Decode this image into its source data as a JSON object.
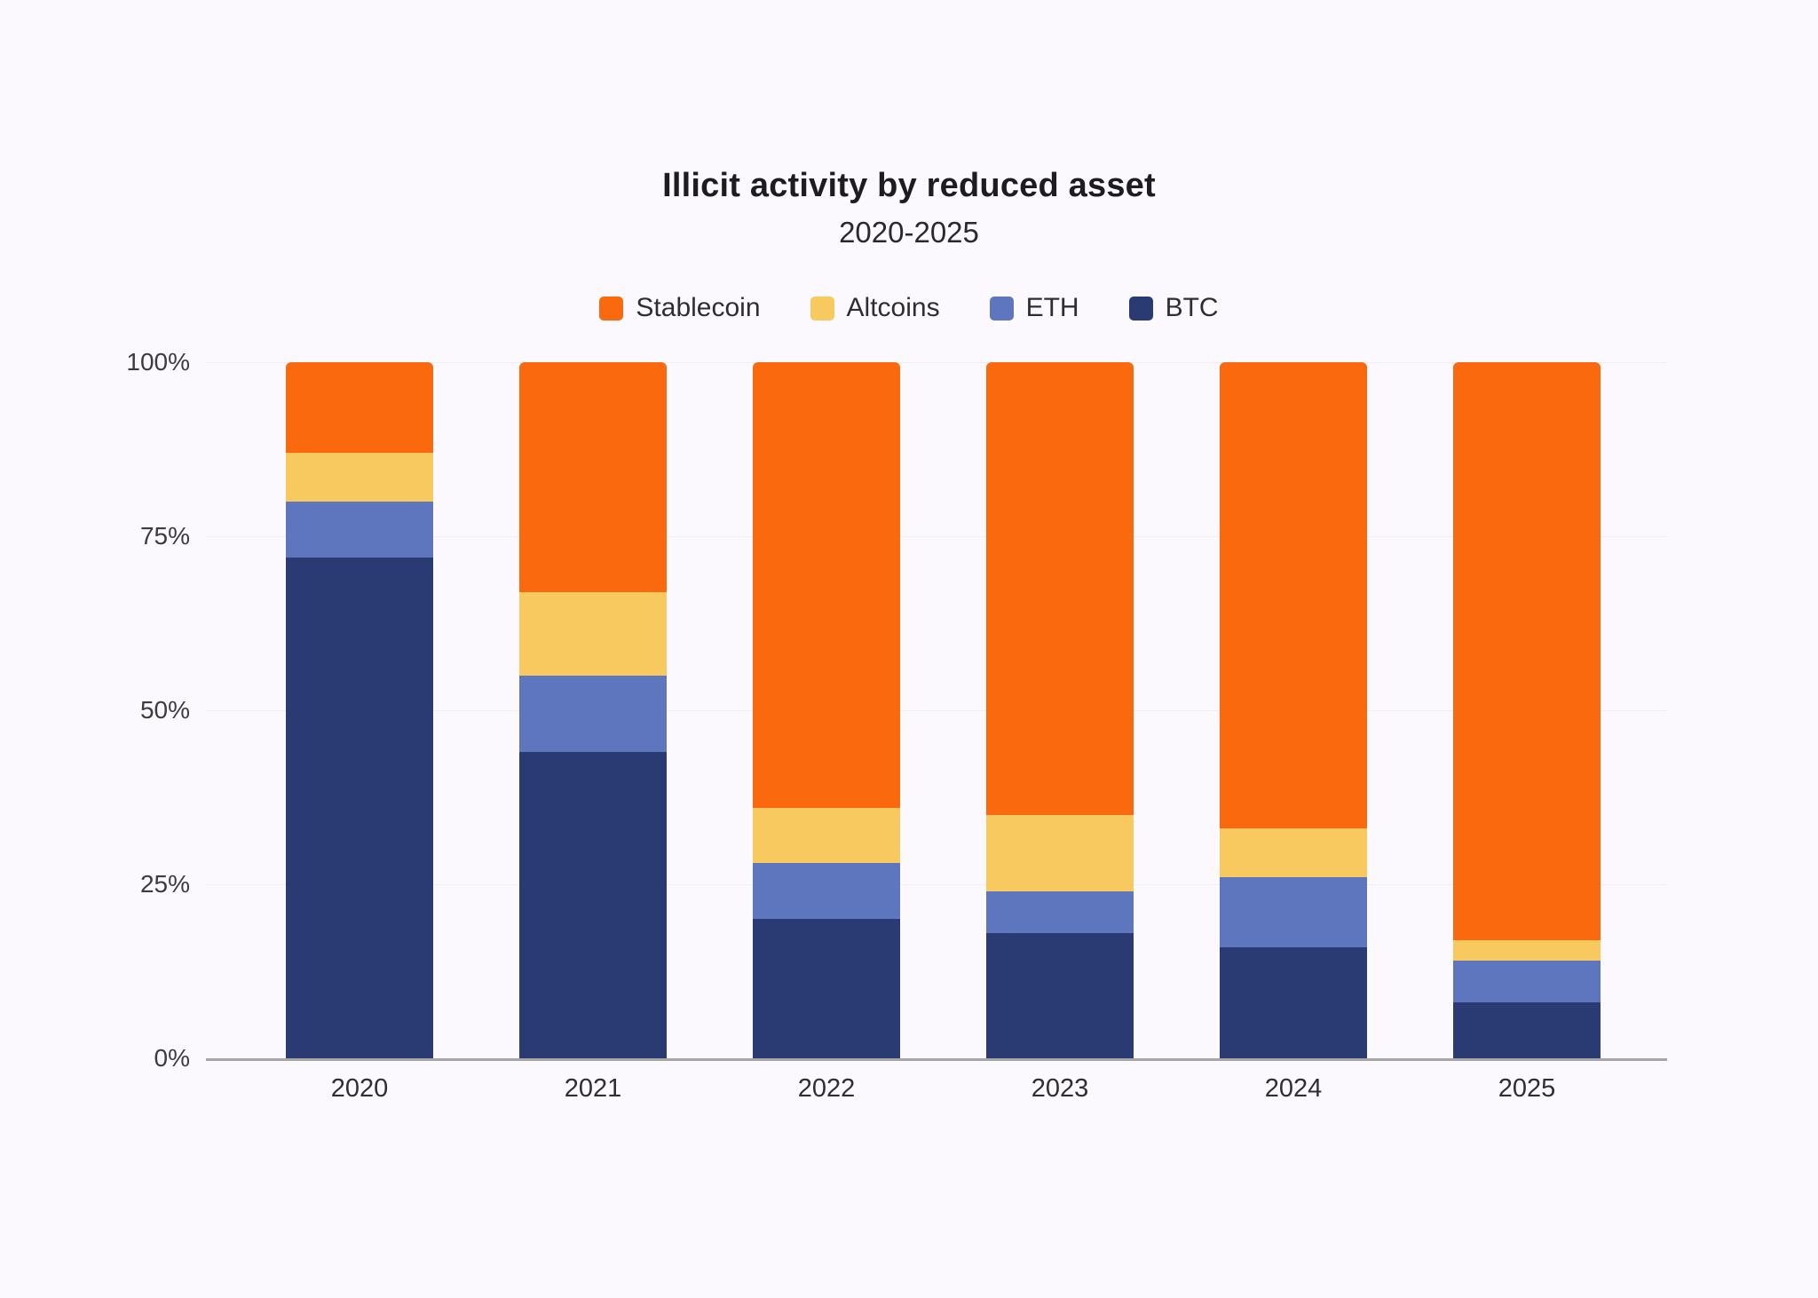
{
  "page": {
    "background_color": "#fbf9fd"
  },
  "chart_data": {
    "type": "bar",
    "stacked": true,
    "title": "Illicit activity by reduced asset",
    "subtitle": "2020-2025",
    "categories": [
      "2020",
      "2021",
      "2022",
      "2023",
      "2024",
      "2025"
    ],
    "series": [
      {
        "name": "Stablecoin",
        "color": "#fa690d",
        "values": [
          13,
          33,
          64,
          65,
          67,
          83
        ]
      },
      {
        "name": "Altcoins",
        "color": "#f8c95e",
        "values": [
          7,
          12,
          8,
          11,
          7,
          3
        ]
      },
      {
        "name": "ETH",
        "color": "#5e76be",
        "values": [
          8,
          11,
          8,
          6,
          10,
          6
        ]
      },
      {
        "name": "BTC",
        "color": "#2a3a73",
        "values": [
          72,
          44,
          20,
          18,
          16,
          8
        ]
      }
    ],
    "stack_order_bottom_to_top": [
      "BTC",
      "ETH",
      "Altcoins",
      "Stablecoin"
    ],
    "xlabel": "",
    "ylabel": "",
    "ylim": [
      0,
      100
    ],
    "y_ticks": [
      {
        "label": "0%",
        "value": 0
      },
      {
        "label": "25%",
        "value": 25
      },
      {
        "label": "50%",
        "value": 50
      },
      {
        "label": "75%",
        "value": 75
      },
      {
        "label": "100%",
        "value": 100
      }
    ],
    "grid": true,
    "legend_position": "top",
    "axis_line_color": "#a6a6a6",
    "gridline_color": "#f1edf3"
  }
}
